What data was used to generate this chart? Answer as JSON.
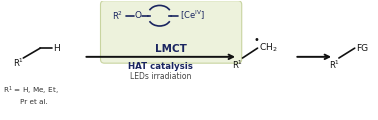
{
  "bg_color": "#ffffff",
  "box_color": "#edf2dc",
  "box_edge_color": "#c8d4a0",
  "dark_blue": "#1a2560",
  "arrow_color": "#111111",
  "mol_color": "#111111",
  "fig_width": 3.78,
  "fig_height": 1.2,
  "dpi": 100,
  "xlim": [
    0,
    10
  ],
  "ylim": [
    0,
    3
  ]
}
